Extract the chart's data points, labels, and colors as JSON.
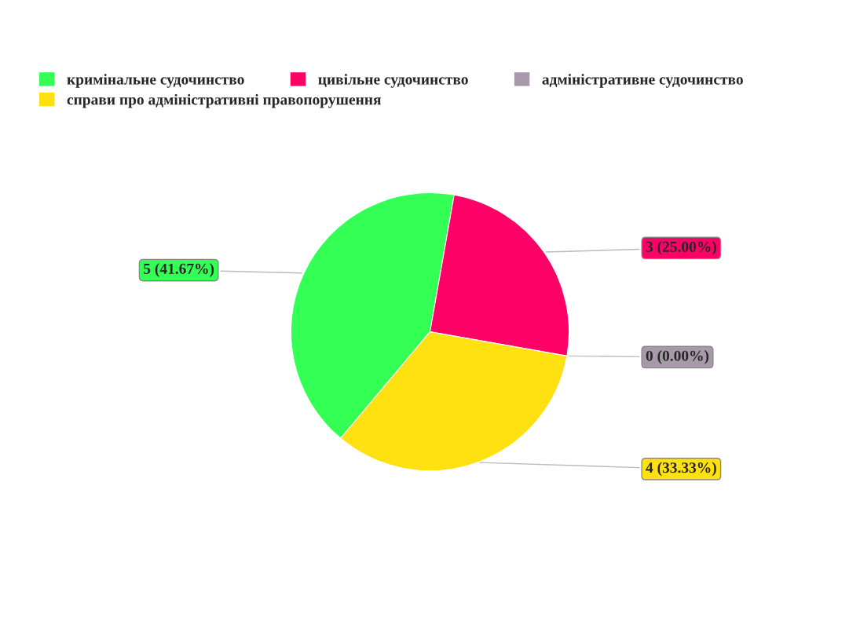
{
  "chart_data": {
    "type": "pie",
    "categories": [
      "кримінальне судочинство",
      "цивільне судочинство",
      "адміністративне судочинство",
      "справи про адміністративні правопорушення"
    ],
    "values": [
      5,
      3,
      0,
      4
    ],
    "colors": [
      "#33ff55",
      "#ff0066",
      "#a899aa",
      "#ffe010"
    ],
    "value_labels": [
      "5 (41.67%)",
      "3 (25.00%)",
      "0 (0.00%)",
      "4 (33.33%)"
    ],
    "legend": "top"
  }
}
